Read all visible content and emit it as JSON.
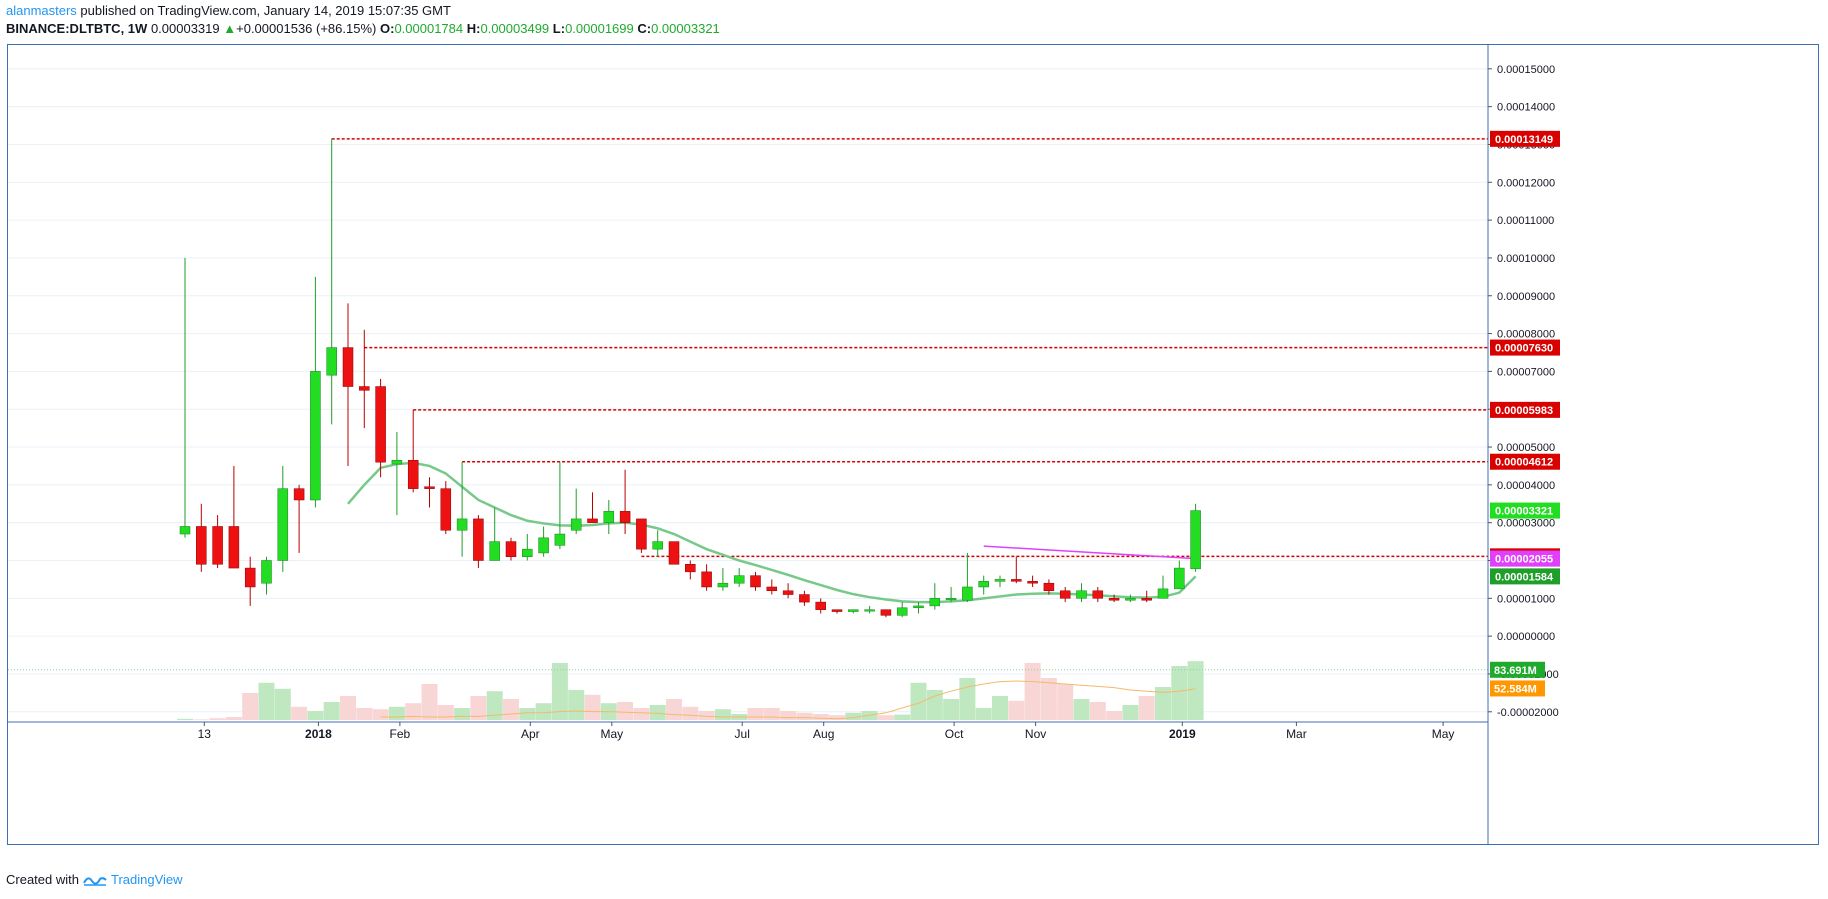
{
  "header": {
    "author": "alanmasters",
    "published_text": " published on TradingView.com, January 14, 2019 15:07:35 GMT",
    "symbol": "BINANCE:DLTBTC, 1W",
    "last": "0.00003319",
    "change_arrow": "▲",
    "change": "+0.00001536 (+86.15%)",
    "o_label": "O:",
    "o_value": "0.00001784",
    "h_label": "H:",
    "h_value": "0.00003499",
    "l_label": "L:",
    "l_value": "0.00001699",
    "c_label": "C:",
    "c_value": "0.00003321"
  },
  "footer": {
    "created_with": "Created with",
    "brand": "TradingView"
  },
  "chart_data": {
    "type": "candlestick",
    "timeframe": "1W",
    "y_ticks": [
      "0.00015000",
      "0.00014000",
      "0.00013000",
      "0.00012000",
      "0.00011000",
      "0.00010000",
      "0.00009000",
      "0.00008000",
      "0.00007000",
      "0.00006000",
      "0.00005000",
      "0.00004000",
      "0.00003000",
      "0.00002000",
      "0.00001000",
      "0.00000000",
      "-0.00001000",
      "-0.00002000"
    ],
    "y_tick_values": [
      0.00015,
      0.00014,
      0.00013,
      0.00012,
      0.00011,
      0.0001,
      9e-05,
      8e-05,
      7e-05,
      6e-05,
      5e-05,
      4e-05,
      3e-05,
      2e-05,
      1e-05,
      0.0,
      -1e-05,
      -2e-05
    ],
    "ylim": [
      -2.27e-05,
      0.0001563
    ],
    "x_ticks": [
      {
        "label": "13",
        "index": 1,
        "bold": false
      },
      {
        "label": "2018",
        "index": 8,
        "bold": true
      },
      {
        "label": "Feb",
        "index": 13,
        "bold": false
      },
      {
        "label": "Apr",
        "index": 21,
        "bold": false
      },
      {
        "label": "May",
        "index": 26,
        "bold": false
      },
      {
        "label": "Jul",
        "index": 34,
        "bold": false
      },
      {
        "label": "Aug",
        "index": 39,
        "bold": false
      },
      {
        "label": "Oct",
        "index": 47,
        "bold": false
      },
      {
        "label": "Nov",
        "index": 52,
        "bold": false
      },
      {
        "label": "2019",
        "index": 61,
        "bold": true
      },
      {
        "label": "Mar",
        "index": 68,
        "bold": false
      },
      {
        "label": "May",
        "index": 77,
        "bold": false
      }
    ],
    "ohlc": [
      [
        2.7e-05,
        0.0001,
        2.6e-05,
        2.9e-05
      ],
      [
        2.9e-05,
        3.5e-05,
        1.7e-05,
        1.9e-05
      ],
      [
        2.9e-05,
        3.2e-05,
        1.8e-05,
        1.9e-05
      ],
      [
        2.9e-05,
        4.5e-05,
        1.8e-05,
        1.8e-05
      ],
      [
        1.8e-05,
        2.1e-05,
        8e-06,
        1.3e-05
      ],
      [
        1.4e-05,
        2.1e-05,
        1.1e-05,
        2e-05
      ],
      [
        2e-05,
        4.5e-05,
        1.7e-05,
        3.9e-05
      ],
      [
        3.9e-05,
        4e-05,
        2.2e-05,
        3.6e-05
      ],
      [
        3.6e-05,
        9.5e-05,
        3.4e-05,
        7e-05
      ],
      [
        6.9e-05,
        0.0001315,
        5.6e-05,
        7.63e-05
      ],
      [
        7.63e-05,
        8.8e-05,
        4.5e-05,
        6.6e-05
      ],
      [
        6.6e-05,
        8.1e-05,
        5.5e-05,
        6.5e-05
      ],
      [
        6.6e-05,
        6.8e-05,
        4.2e-05,
        4.6e-05
      ],
      [
        4.55e-05,
        5.4e-05,
        3.2e-05,
        4.65e-05
      ],
      [
        4.65e-05,
        5.98e-05,
        3.8e-05,
        3.9e-05
      ],
      [
        3.95e-05,
        4.2e-05,
        3.4e-05,
        3.9e-05
      ],
      [
        3.9e-05,
        4.1e-05,
        2.7e-05,
        2.8e-05
      ],
      [
        2.8e-05,
        4.6e-05,
        2.1e-05,
        3.1e-05
      ],
      [
        3.1e-05,
        3.2e-05,
        1.8e-05,
        2e-05
      ],
      [
        2e-05,
        3.4e-05,
        2e-05,
        2.5e-05
      ],
      [
        2.5e-05,
        2.6e-05,
        2e-05,
        2.1e-05
      ],
      [
        2.1e-05,
        2.7e-05,
        2e-05,
        2.3e-05
      ],
      [
        2.2e-05,
        2.9e-05,
        2.1e-05,
        2.6e-05
      ],
      [
        2.4e-05,
        4.6e-05,
        2.3e-05,
        2.7e-05
      ],
      [
        2.8e-05,
        3.9e-05,
        2.7e-05,
        3.1e-05
      ],
      [
        3.1e-05,
        3.8e-05,
        3e-05,
        3e-05
      ],
      [
        3e-05,
        3.6e-05,
        2.7e-05,
        3.3e-05
      ],
      [
        3.3e-05,
        4.4e-05,
        2.7e-05,
        3e-05
      ],
      [
        3.1e-05,
        3.1e-05,
        2.2e-05,
        2.3e-05
      ],
      [
        2.3e-05,
        2.8e-05,
        2.1e-05,
        2.5e-05
      ],
      [
        2.5e-05,
        2.5e-05,
        1.9e-05,
        1.9e-05
      ],
      [
        1.9e-05,
        2e-05,
        1.5e-05,
        1.7e-05
      ],
      [
        1.7e-05,
        1.9e-05,
        1.2e-05,
        1.3e-05
      ],
      [
        1.3e-05,
        1.8e-05,
        1.2e-05,
        1.4e-05
      ],
      [
        1.4e-05,
        1.8e-05,
        1.3e-05,
        1.6e-05
      ],
      [
        1.6e-05,
        1.7e-05,
        1.2e-05,
        1.3e-05
      ],
      [
        1.3e-05,
        1.5e-05,
        1.1e-05,
        1.2e-05
      ],
      [
        1.2e-05,
        1.4e-05,
        1e-05,
        1.1e-05
      ],
      [
        1.1e-05,
        1.2e-05,
        8e-06,
        9e-06
      ],
      [
        9e-06,
        1e-05,
        6e-06,
        7e-06
      ],
      [
        7e-06,
        7e-06,
        6e-06,
        6.5e-06
      ],
      [
        6.5e-06,
        7e-06,
        6e-06,
        7e-06
      ],
      [
        7e-06,
        8e-06,
        6e-06,
        7e-06
      ],
      [
        7e-06,
        7e-06,
        5e-06,
        5.5e-06
      ],
      [
        5.5e-06,
        9e-06,
        5e-06,
        7.5e-06
      ],
      [
        7.5e-06,
        9e-06,
        6e-06,
        8e-06
      ],
      [
        8e-06,
        1.4e-05,
        7e-06,
        1e-05
      ],
      [
        1e-05,
        1.3e-05,
        9e-06,
        1e-05
      ],
      [
        9.5e-06,
        2.2e-05,
        9e-06,
        1.3e-05
      ],
      [
        1.3e-05,
        1.6e-05,
        1.1e-05,
        1.45e-05
      ],
      [
        1.45e-05,
        1.6e-05,
        1.3e-05,
        1.5e-05
      ],
      [
        1.5e-05,
        2.1e-05,
        1.4e-05,
        1.45e-05
      ],
      [
        1.45e-05,
        1.6e-05,
        1.3e-05,
        1.4e-05
      ],
      [
        1.4e-05,
        1.5e-05,
        1.1e-05,
        1.2e-05
      ],
      [
        1.2e-05,
        1.3e-05,
        9e-06,
        1e-05
      ],
      [
        1e-05,
        1.4e-05,
        9e-06,
        1.2e-05
      ],
      [
        1.2e-05,
        1.3e-05,
        9e-06,
        1e-05
      ],
      [
        1e-05,
        1.1e-05,
        9e-06,
        9.5e-06
      ],
      [
        9.5e-06,
        1.1e-05,
        9e-06,
        1e-05
      ],
      [
        1e-05,
        1.2e-05,
        9e-06,
        9.5e-06
      ],
      [
        1e-05,
        1.6e-05,
        1e-05,
        1.25e-05
      ],
      [
        1.25e-05,
        2e-05,
        1.25e-05,
        1.8e-05
      ],
      [
        1.78e-05,
        3.5e-05,
        1.7e-05,
        3.32e-05
      ]
    ],
    "volume_million": [
      2,
      1,
      3,
      5,
      45,
      62,
      52,
      22,
      15,
      30,
      40,
      20,
      18,
      22,
      28,
      60,
      25,
      20,
      40,
      48,
      35,
      20,
      28,
      95,
      50,
      42,
      28,
      30,
      20,
      25,
      35,
      22,
      15,
      18,
      10,
      20,
      20,
      15,
      12,
      10,
      8,
      12,
      15,
      8,
      9,
      62,
      50,
      35,
      70,
      20,
      40,
      32,
      95,
      70,
      60,
      35,
      30,
      15,
      25,
      40,
      55,
      90,
      98
    ],
    "volume_axis_labels": [
      {
        "value": 83.691,
        "label": "83.691M",
        "color": "#1faa2e"
      },
      {
        "value": 52.584,
        "label": "52.584M",
        "color": "#ff9800"
      }
    ],
    "ma_label": "0.00001584",
    "ma_values": [
      null,
      null,
      null,
      null,
      null,
      null,
      null,
      null,
      null,
      null,
      3.5e-05,
      4e-05,
      4.45e-05,
      4.55e-05,
      4.58e-05,
      4.5e-05,
      4.3e-05,
      3.95e-05,
      3.6e-05,
      3.4e-05,
      3.2e-05,
      3.05e-05,
      2.98e-05,
      2.93e-05,
      2.92e-05,
      2.94e-05,
      2.98e-05,
      3e-05,
      2.95e-05,
      2.85e-05,
      2.7e-05,
      2.5e-05,
      2.3e-05,
      2.15e-05,
      2e-05,
      1.88e-05,
      1.75e-05,
      1.62e-05,
      1.48e-05,
      1.35e-05,
      1.22e-05,
      1.11e-05,
      1.03e-05,
      9.7e-06,
      9.2e-06,
      9e-06,
      9e-06,
      9.2e-06,
      9.5e-06,
      1e-05,
      1.05e-05,
      1.1e-05,
      1.12e-05,
      1.13e-05,
      1.12e-05,
      1.1e-05,
      1.08e-05,
      1.05e-05,
      1.03e-05,
      1.02e-05,
      1.04e-05,
      1.15e-05,
      1.58e-05
    ],
    "vol_ma_values": [
      null,
      null,
      null,
      null,
      null,
      null,
      null,
      null,
      null,
      null,
      null,
      null,
      5,
      5,
      6,
      5,
      5,
      6,
      6,
      8,
      10,
      12,
      12,
      14,
      15,
      14,
      14,
      13,
      12,
      11,
      9,
      8,
      6,
      5,
      5,
      5,
      5,
      4,
      4,
      3,
      2,
      4,
      8,
      12,
      20,
      28,
      40,
      48,
      55,
      60,
      64,
      65,
      64,
      62,
      60,
      58,
      56,
      54,
      50,
      48,
      46,
      48,
      52
    ],
    "horizontal_levels": [
      {
        "value": 0.00013149,
        "label": "0.00013149",
        "color": "#d90000",
        "from": 9
      },
      {
        "value": 7.63e-05,
        "label": "0.00007630",
        "color": "#d90000",
        "from": 11
      },
      {
        "value": 5.983e-05,
        "label": "0.00005983",
        "color": "#d90000",
        "from": 14
      },
      {
        "value": 4.612e-05,
        "label": "0.00004612",
        "color": "#d90000",
        "from": 17
      },
      {
        "value": 2.11e-05,
        "label": "0.00002110",
        "color": "#d90000",
        "from": 28
      }
    ],
    "trendline": {
      "from_index": 49,
      "from_value": 2.38e-05,
      "to_index": 62,
      "to_value": 2.05e-05,
      "label": "0.00002055",
      "color": "#e040fb"
    },
    "price_label": {
      "value": 3.321e-05,
      "label": "0.00003321"
    },
    "colors": {
      "up": "#22dd22",
      "down": "#ee1111",
      "ma": "#77c98a",
      "vol_ma": "#f5b96a",
      "level": "#d90000",
      "trend": "#e040fb",
      "axis": "#3d6fb5",
      "grid": "#e8f1f8"
    }
  }
}
